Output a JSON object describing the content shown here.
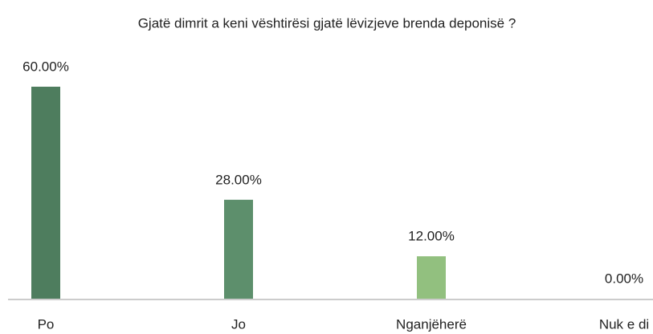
{
  "chart_data": {
    "type": "bar",
    "title": "Gjatë dimrit a keni vështirësi gjatë lëvizjeve brenda deponisë ?",
    "categories": [
      "Po",
      "Jo",
      "Nganjëherë",
      "Nuk e di"
    ],
    "values": [
      60,
      28,
      12,
      0
    ],
    "value_labels": [
      "60.00%",
      "28.00%",
      "12.00%",
      "0.00%"
    ],
    "colors": [
      "#4e7d5e",
      "#5d8f6c",
      "#92c07f",
      "#a8cf92"
    ],
    "ylim": [
      0,
      60
    ]
  }
}
